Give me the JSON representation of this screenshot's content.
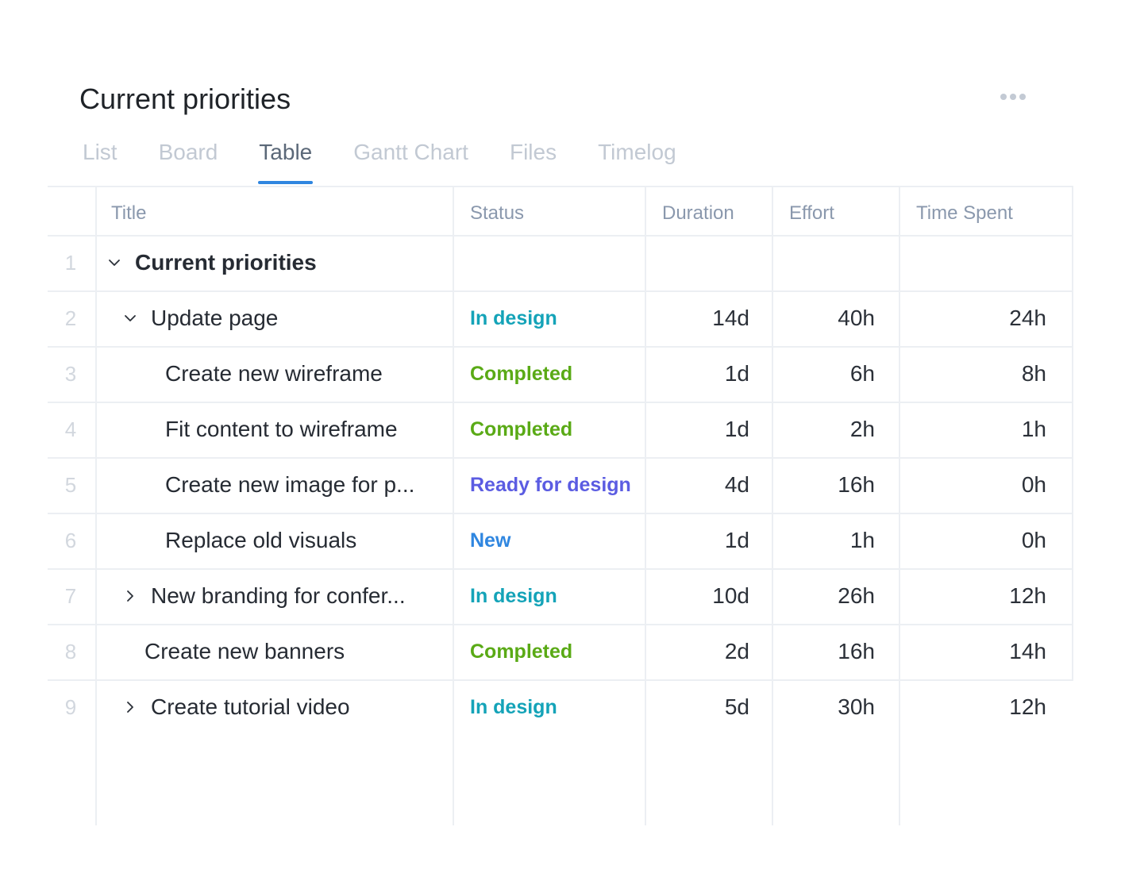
{
  "page": {
    "title": "Current priorities",
    "more_icon": "more-horizontal-icon"
  },
  "tabs": [
    {
      "label": "List",
      "active": false
    },
    {
      "label": "Board",
      "active": false
    },
    {
      "label": "Table",
      "active": true
    },
    {
      "label": "Gantt Chart",
      "active": false
    },
    {
      "label": "Files",
      "active": false
    },
    {
      "label": "Timelog",
      "active": false
    }
  ],
  "colors": {
    "accent": "#2f86e0",
    "status_in_design": "#14a3b8",
    "status_completed": "#5aaa16",
    "status_ready_for_design": "#5b5ce2",
    "status_new": "#2f86e0"
  },
  "table": {
    "columns": {
      "title": "Title",
      "status": "Status",
      "duration": "Duration",
      "effort": "Effort",
      "time_spent": "Time Spent"
    },
    "rows": [
      {
        "num": "1",
        "title": "Current priorities",
        "status": "",
        "status_color": "",
        "duration": "",
        "effort": "",
        "time_spent": "",
        "chevron": "chevron-down-icon"
      },
      {
        "num": "2",
        "title": "Update page",
        "status": "In design",
        "status_color": "#14a3b8",
        "duration": "14d",
        "effort": "40h",
        "time_spent": "24h",
        "chevron": "chevron-down-icon"
      },
      {
        "num": "3",
        "title": "Create new wireframe",
        "status": "Completed",
        "status_color": "#5aaa16",
        "duration": "1d",
        "effort": "6h",
        "time_spent": "8h",
        "chevron": ""
      },
      {
        "num": "4",
        "title": "Fit content to wireframe",
        "status": "Completed",
        "status_color": "#5aaa16",
        "duration": "1d",
        "effort": "2h",
        "time_spent": "1h",
        "chevron": ""
      },
      {
        "num": "5",
        "title": "Create new image for p...",
        "status": "Ready for design",
        "status_color": "#5b5ce2",
        "duration": "4d",
        "effort": "16h",
        "time_spent": "0h",
        "chevron": ""
      },
      {
        "num": "6",
        "title": "Replace old visuals",
        "status": "New",
        "status_color": "#2f86e0",
        "duration": "1d",
        "effort": "1h",
        "time_spent": "0h",
        "chevron": ""
      },
      {
        "num": "7",
        "title": "New branding for confer...",
        "status": "In design",
        "status_color": "#14a3b8",
        "duration": "10d",
        "effort": "26h",
        "time_spent": "12h",
        "chevron": "chevron-right-icon"
      },
      {
        "num": "8",
        "title": "Create new banners",
        "status": "Completed",
        "status_color": "#5aaa16",
        "duration": "2d",
        "effort": "16h",
        "time_spent": "14h",
        "chevron": ""
      },
      {
        "num": "9",
        "title": "Create tutorial video",
        "status": "In design",
        "status_color": "#14a3b8",
        "duration": "5d",
        "effort": "30h",
        "time_spent": "12h",
        "chevron": "chevron-right-icon"
      }
    ]
  }
}
